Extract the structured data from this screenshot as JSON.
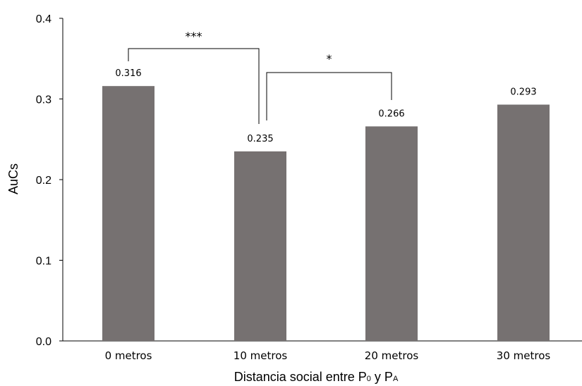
{
  "chart_data": {
    "type": "bar",
    "title": "",
    "categories": [
      "0 metros",
      "10 metros",
      "20 metros",
      "30 metros"
    ],
    "values": [
      0.316,
      0.235,
      0.266,
      0.293
    ],
    "data_labels": [
      "0.316",
      "0.235",
      "0.266",
      "0.293"
    ],
    "ylabel": "AuCs",
    "xlabel": {
      "prefix": "Distancia social entre P",
      "sub1": "0",
      "middle": " y P",
      "sub2": "A"
    },
    "ylim": [
      0,
      0.4
    ],
    "yticks": [
      "0.0",
      "0.1",
      "0.2",
      "0.3",
      "0.4"
    ],
    "grid": false,
    "legend": "none",
    "bar_color": "#767171",
    "significance": [
      {
        "from": 0,
        "to": 1,
        "label": "***"
      },
      {
        "from": 1,
        "to": 2,
        "label": "*"
      }
    ]
  }
}
